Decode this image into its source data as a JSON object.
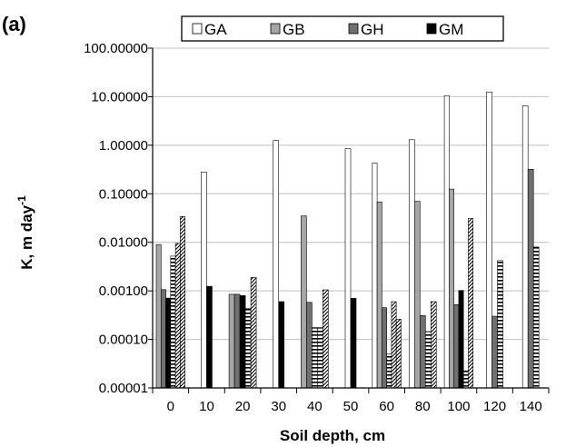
{
  "chart_data": {
    "type": "bar",
    "panel_label": "(a)",
    "title": "",
    "xlabel": "Soil depth, cm",
    "ylabel_main": "K, m day",
    "ylabel_sup": "-1",
    "y_scale": "log",
    "ylim": [
      1e-05,
      100
    ],
    "y_ticks": [
      "0.00001",
      "0.00010",
      "0.00100",
      "0.01000",
      "0.10000",
      "1.00000",
      "10.00000",
      "100.00000"
    ],
    "categories": [
      "0",
      "10",
      "20",
      "30",
      "40",
      "50",
      "60",
      "80",
      "100",
      "120",
      "140"
    ],
    "grid": "major horizontal",
    "legend_position": "top",
    "legend": [
      {
        "label": "GA",
        "color": "#ffffff"
      },
      {
        "label": "GB",
        "color": "#a6a6a6"
      },
      {
        "label": "GH",
        "color": "#707070"
      },
      {
        "label": "GM",
        "color": "#000000"
      }
    ],
    "bar_groups": [
      {
        "category": "0",
        "bars": [
          {
            "fill": "#a6a6a6",
            "value": 0.009
          },
          {
            "fill": "#707070",
            "value": 0.00106
          },
          {
            "fill": "#000000",
            "value": 0.00071
          },
          {
            "fill": "horizontal-stripes",
            "value": 0.0052
          },
          {
            "fill": "hatch",
            "value": 0.0095
          },
          {
            "fill": "hatch",
            "value": 0.034
          }
        ]
      },
      {
        "category": "10",
        "bars": [
          {
            "fill": "#ffffff",
            "value": 0.28
          },
          {
            "fill": "#000000",
            "value": 0.00124
          }
        ]
      },
      {
        "category": "20",
        "bars": [
          {
            "fill": "#a6a6a6",
            "value": 0.00085
          },
          {
            "fill": "#707070",
            "value": 0.00085
          },
          {
            "fill": "#000000",
            "value": 0.0008
          },
          {
            "fill": "horizontal-stripes",
            "value": 0.00043
          },
          {
            "fill": "hatch",
            "value": 0.0019
          }
        ]
      },
      {
        "category": "30",
        "bars": [
          {
            "fill": "#ffffff",
            "value": 1.25
          },
          {
            "fill": "#000000",
            "value": 0.0006
          }
        ]
      },
      {
        "category": "40",
        "bars": [
          {
            "fill": "#a6a6a6",
            "value": 0.035
          },
          {
            "fill": "#707070",
            "value": 0.00058
          },
          {
            "fill": "horizontal-stripes",
            "value": 0.000175
          },
          {
            "fill": "horizontal-stripes",
            "value": 0.000175
          },
          {
            "fill": "hatch",
            "value": 0.00105
          }
        ]
      },
      {
        "category": "50",
        "bars": [
          {
            "fill": "#ffffff",
            "value": 0.85
          },
          {
            "fill": "#000000",
            "value": 0.0007
          }
        ]
      },
      {
        "category": "60",
        "bars": [
          {
            "fill": "#ffffff",
            "value": 0.43
          },
          {
            "fill": "#a6a6a6",
            "value": 0.068
          },
          {
            "fill": "#707070",
            "value": 0.00045
          },
          {
            "fill": "horizontal-stripes",
            "value": 5e-05
          },
          {
            "fill": "hatch",
            "value": 0.0006
          },
          {
            "fill": "hatch",
            "value": 0.00026
          }
        ]
      },
      {
        "category": "80",
        "bars": [
          {
            "fill": "#ffffff",
            "value": 1.3
          },
          {
            "fill": "#a6a6a6",
            "value": 0.07
          },
          {
            "fill": "#707070",
            "value": 0.00031
          },
          {
            "fill": "horizontal-stripes",
            "value": 0.000145
          },
          {
            "fill": "hatch",
            "value": 0.0006
          }
        ]
      },
      {
        "category": "100",
        "bars": [
          {
            "fill": "#ffffff",
            "value": 10.5
          },
          {
            "fill": "#a6a6a6",
            "value": 0.125
          },
          {
            "fill": "#707070",
            "value": 0.00052
          },
          {
            "fill": "#000000",
            "value": 0.00102
          },
          {
            "fill": "horizontal-stripes",
            "value": 2.25e-05
          },
          {
            "fill": "hatch",
            "value": 0.031
          }
        ]
      },
      {
        "category": "120",
        "bars": [
          {
            "fill": "#ffffff",
            "value": 12.5
          },
          {
            "fill": "#707070",
            "value": 0.0003
          },
          {
            "fill": "horizontal-stripes",
            "value": 0.0042
          }
        ]
      },
      {
        "category": "140",
        "bars": [
          {
            "fill": "#ffffff",
            "value": 6.5
          },
          {
            "fill": "#707070",
            "value": 0.32
          },
          {
            "fill": "horizontal-stripes",
            "value": 0.008
          }
        ]
      }
    ]
  }
}
